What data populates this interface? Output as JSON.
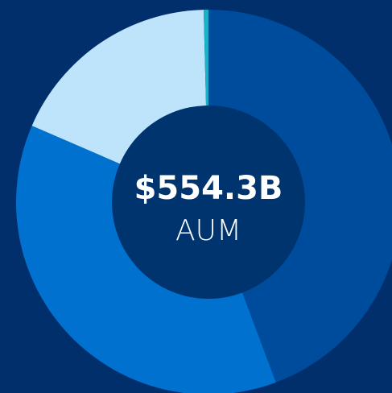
{
  "chart_data": {
    "type": "donut",
    "center_value": "$554.3B",
    "center_label": "AUM",
    "values": [
      44.3,
      37.2,
      18.1,
      0.4
    ],
    "colors": [
      "#004c9c",
      "#0071cf",
      "#bde4fa",
      "#1ab0cc"
    ],
    "start_angle": 0,
    "direction": "clockwise"
  }
}
